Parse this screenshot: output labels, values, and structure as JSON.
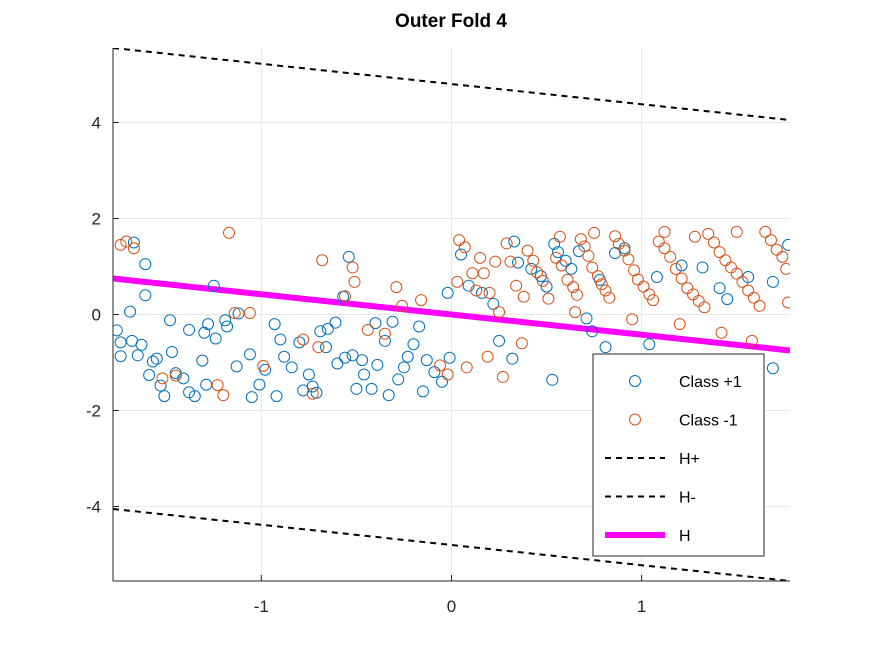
{
  "chart_data": {
    "type": "scatter",
    "title": "Outer Fold 4",
    "xlabel": "",
    "ylabel": "",
    "xlim": [
      -1.78,
      1.78
    ],
    "ylim": [
      -5.55,
      5.55
    ],
    "xticks": [
      -1,
      0,
      1
    ],
    "xtick_labels": [
      "-1",
      "0",
      "1"
    ],
    "yticks": [
      -4,
      -2,
      0,
      2,
      4
    ],
    "ytick_labels": [
      "-4",
      "-2",
      "0",
      "2",
      "4"
    ],
    "grid": true,
    "legend_position": "lower-right",
    "series": [
      {
        "name": "Class +1",
        "kind": "scatter",
        "marker": "open-circle",
        "color": "#0072BD",
        "points": [
          [
            -1.67,
            1.5
          ],
          [
            -1.61,
            1.05
          ],
          [
            -1.61,
            0.4
          ],
          [
            -1.69,
            0.06
          ],
          [
            -1.76,
            -0.33
          ],
          [
            -1.74,
            -0.58
          ],
          [
            -1.68,
            -0.55
          ],
          [
            -1.74,
            -0.87
          ],
          [
            -1.65,
            -0.85
          ],
          [
            -1.63,
            -0.63
          ],
          [
            -1.57,
            -0.98
          ],
          [
            -1.59,
            -1.26
          ],
          [
            -1.53,
            -1.48
          ],
          [
            -1.51,
            -1.7
          ],
          [
            -1.45,
            -1.22
          ],
          [
            -1.41,
            -1.33
          ],
          [
            -1.38,
            -1.62
          ],
          [
            -1.35,
            -1.7
          ],
          [
            -1.29,
            -1.46
          ],
          [
            -1.31,
            -0.96
          ],
          [
            -1.3,
            -0.38
          ],
          [
            -1.28,
            -0.2
          ],
          [
            -1.24,
            -0.5
          ],
          [
            -1.18,
            -0.25
          ],
          [
            -1.13,
            -1.08
          ],
          [
            -1.06,
            -0.83
          ],
          [
            -1.01,
            -1.46
          ],
          [
            -0.98,
            -1.15
          ],
          [
            -0.93,
            -0.2
          ],
          [
            -0.9,
            -0.52
          ],
          [
            -0.88,
            -0.88
          ],
          [
            -0.84,
            -1.1
          ],
          [
            -0.8,
            -0.58
          ],
          [
            -0.75,
            -1.25
          ],
          [
            -0.73,
            -1.5
          ],
          [
            -0.71,
            -1.63
          ],
          [
            -0.69,
            -0.35
          ],
          [
            -0.65,
            -0.3
          ],
          [
            -0.61,
            -0.17
          ],
          [
            -0.57,
            0.37
          ],
          [
            -0.54,
            1.2
          ],
          [
            -0.56,
            -0.9
          ],
          [
            -0.52,
            -0.85
          ],
          [
            -0.47,
            -0.95
          ],
          [
            -0.46,
            -1.25
          ],
          [
            -0.42,
            -1.55
          ],
          [
            -0.39,
            -1.05
          ],
          [
            -0.35,
            -0.55
          ],
          [
            -0.31,
            -0.15
          ],
          [
            -0.28,
            -1.35
          ],
          [
            -0.25,
            -1.1
          ],
          [
            -0.23,
            -0.88
          ],
          [
            -0.2,
            -0.62
          ],
          [
            -0.17,
            -0.25
          ],
          [
            -0.13,
            -0.95
          ],
          [
            -0.09,
            -1.2
          ],
          [
            -0.05,
            -1.4
          ],
          [
            -0.01,
            -0.9
          ],
          [
            -0.02,
            0.45
          ],
          [
            0.05,
            1.25
          ],
          [
            0.09,
            0.6
          ],
          [
            0.16,
            0.45
          ],
          [
            0.22,
            0.22
          ],
          [
            0.25,
            -0.55
          ],
          [
            0.33,
            1.52
          ],
          [
            0.35,
            1.08
          ],
          [
            0.42,
            0.95
          ],
          [
            0.47,
            0.8
          ],
          [
            0.5,
            0.58
          ],
          [
            0.54,
            1.47
          ],
          [
            0.56,
            1.3
          ],
          [
            0.6,
            1.12
          ],
          [
            0.63,
            0.95
          ],
          [
            0.67,
            1.32
          ],
          [
            0.71,
            -0.08
          ],
          [
            0.74,
            -0.35
          ],
          [
            0.78,
            0.72
          ],
          [
            0.86,
            1.28
          ],
          [
            0.91,
            1.38
          ],
          [
            1.04,
            -0.62
          ],
          [
            1.08,
            0.78
          ],
          [
            1.21,
            1.02
          ],
          [
            1.32,
            0.98
          ],
          [
            1.41,
            0.55
          ],
          [
            1.45,
            0.32
          ],
          [
            1.56,
            0.78
          ],
          [
            1.69,
            0.68
          ],
          [
            1.77,
            1.45
          ],
          [
            1.69,
            -1.12
          ],
          [
            0.32,
            -0.92
          ],
          [
            0.53,
            -1.36
          ],
          [
            0.81,
            -0.68
          ],
          [
            -1.12,
            0.02
          ],
          [
            -1.48,
            -0.12
          ],
          [
            -1.25,
            0.6
          ],
          [
            -0.78,
            -1.58
          ],
          [
            -0.92,
            -1.7
          ],
          [
            -1.05,
            -1.72
          ],
          [
            -1.38,
            -0.32
          ],
          [
            -1.19,
            -0.12
          ],
          [
            -0.6,
            -1.02
          ],
          [
            -0.4,
            -0.18
          ],
          [
            -0.15,
            -1.6
          ],
          [
            -0.66,
            -0.68
          ],
          [
            -0.5,
            -1.55
          ],
          [
            -0.33,
            -1.68
          ],
          [
            -1.55,
            -0.92
          ],
          [
            -1.47,
            -0.78
          ]
        ]
      },
      {
        "name": "Class -1",
        "kind": "scatter",
        "marker": "open-circle",
        "color": "#D95319",
        "points": [
          [
            -1.74,
            1.45
          ],
          [
            -1.71,
            1.52
          ],
          [
            -1.67,
            1.38
          ],
          [
            -1.17,
            1.7
          ],
          [
            -1.14,
            0.03
          ],
          [
            -1.06,
            0.03
          ],
          [
            -1.2,
            -1.68
          ],
          [
            -1.23,
            -1.47
          ],
          [
            -1.52,
            -1.33
          ],
          [
            -1.45,
            -1.27
          ],
          [
            -0.99,
            -1.07
          ],
          [
            -0.78,
            -0.52
          ],
          [
            -0.73,
            -1.65
          ],
          [
            -0.7,
            -0.68
          ],
          [
            -0.68,
            1.13
          ],
          [
            -0.56,
            0.38
          ],
          [
            -0.52,
            0.98
          ],
          [
            -0.51,
            0.68
          ],
          [
            -0.44,
            -0.32
          ],
          [
            -0.35,
            -0.4
          ],
          [
            -0.29,
            0.57
          ],
          [
            -0.26,
            0.18
          ],
          [
            -0.16,
            0.3
          ],
          [
            -0.06,
            -1.06
          ],
          [
            -0.02,
            -1.25
          ],
          [
            0.04,
            1.55
          ],
          [
            0.07,
            1.4
          ],
          [
            0.11,
            0.86
          ],
          [
            0.13,
            0.5
          ],
          [
            0.17,
            0.86
          ],
          [
            0.2,
            0.45
          ],
          [
            0.25,
            0.05
          ],
          [
            0.27,
            -1.3
          ],
          [
            0.29,
            1.48
          ],
          [
            0.31,
            1.1
          ],
          [
            0.34,
            0.6
          ],
          [
            0.38,
            0.37
          ],
          [
            0.4,
            1.33
          ],
          [
            0.43,
            1.12
          ],
          [
            0.45,
            0.88
          ],
          [
            0.48,
            0.7
          ],
          [
            0.51,
            0.33
          ],
          [
            0.55,
            1.18
          ],
          [
            0.58,
            1.02
          ],
          [
            0.61,
            0.72
          ],
          [
            0.64,
            0.57
          ],
          [
            0.66,
            0.41
          ],
          [
            0.68,
            1.57
          ],
          [
            0.7,
            1.42
          ],
          [
            0.72,
            1.22
          ],
          [
            0.74,
            0.98
          ],
          [
            0.77,
            0.8
          ],
          [
            0.79,
            0.63
          ],
          [
            0.81,
            0.5
          ],
          [
            0.83,
            0.35
          ],
          [
            0.86,
            1.63
          ],
          [
            0.88,
            1.47
          ],
          [
            0.91,
            1.33
          ],
          [
            0.93,
            1.15
          ],
          [
            0.96,
            0.92
          ],
          [
            0.98,
            0.73
          ],
          [
            1.01,
            0.58
          ],
          [
            1.04,
            0.42
          ],
          [
            1.06,
            0.3
          ],
          [
            1.09,
            1.52
          ],
          [
            1.12,
            1.38
          ],
          [
            1.15,
            1.2
          ],
          [
            1.18,
            0.95
          ],
          [
            1.21,
            0.75
          ],
          [
            1.24,
            0.55
          ],
          [
            1.27,
            0.42
          ],
          [
            1.3,
            0.28
          ],
          [
            1.33,
            0.15
          ],
          [
            1.35,
            1.68
          ],
          [
            1.38,
            1.5
          ],
          [
            1.41,
            1.3
          ],
          [
            1.44,
            1.13
          ],
          [
            1.47,
            0.98
          ],
          [
            1.5,
            0.85
          ],
          [
            1.53,
            0.68
          ],
          [
            1.56,
            0.5
          ],
          [
            1.59,
            0.35
          ],
          [
            1.62,
            0.18
          ],
          [
            1.65,
            1.72
          ],
          [
            1.68,
            1.55
          ],
          [
            1.71,
            1.35
          ],
          [
            1.74,
            1.2
          ],
          [
            1.76,
            0.95
          ],
          [
            1.77,
            0.25
          ],
          [
            1.58,
            -0.55
          ],
          [
            1.42,
            -0.38
          ],
          [
            1.2,
            -0.2
          ],
          [
            0.95,
            -0.1
          ],
          [
            0.65,
            0.05
          ],
          [
            0.37,
            -0.6
          ],
          [
            0.19,
            -0.88
          ],
          [
            0.08,
            -1.1
          ],
          [
            0.57,
            1.62
          ],
          [
            0.75,
            1.7
          ],
          [
            1.28,
            1.62
          ],
          [
            1.12,
            1.72
          ],
          [
            1.5,
            1.72
          ],
          [
            0.23,
            1.1
          ],
          [
            0.03,
            0.68
          ],
          [
            0.15,
            1.18
          ]
        ]
      },
      {
        "name": "H+",
        "kind": "line",
        "dash": "dashed",
        "color": "#000000",
        "points": [
          [
            -1.78,
            5.55
          ],
          [
            1.78,
            4.05
          ]
        ]
      },
      {
        "name": "H-",
        "kind": "line",
        "dash": "dashed",
        "color": "#000000",
        "points": [
          [
            -1.78,
            -4.05
          ],
          [
            1.78,
            -5.55
          ]
        ]
      },
      {
        "name": "H",
        "kind": "line",
        "dash": "solid",
        "color": "#FF00FF",
        "points": [
          [
            -1.78,
            0.75
          ],
          [
            1.78,
            -0.75
          ]
        ]
      }
    ]
  }
}
